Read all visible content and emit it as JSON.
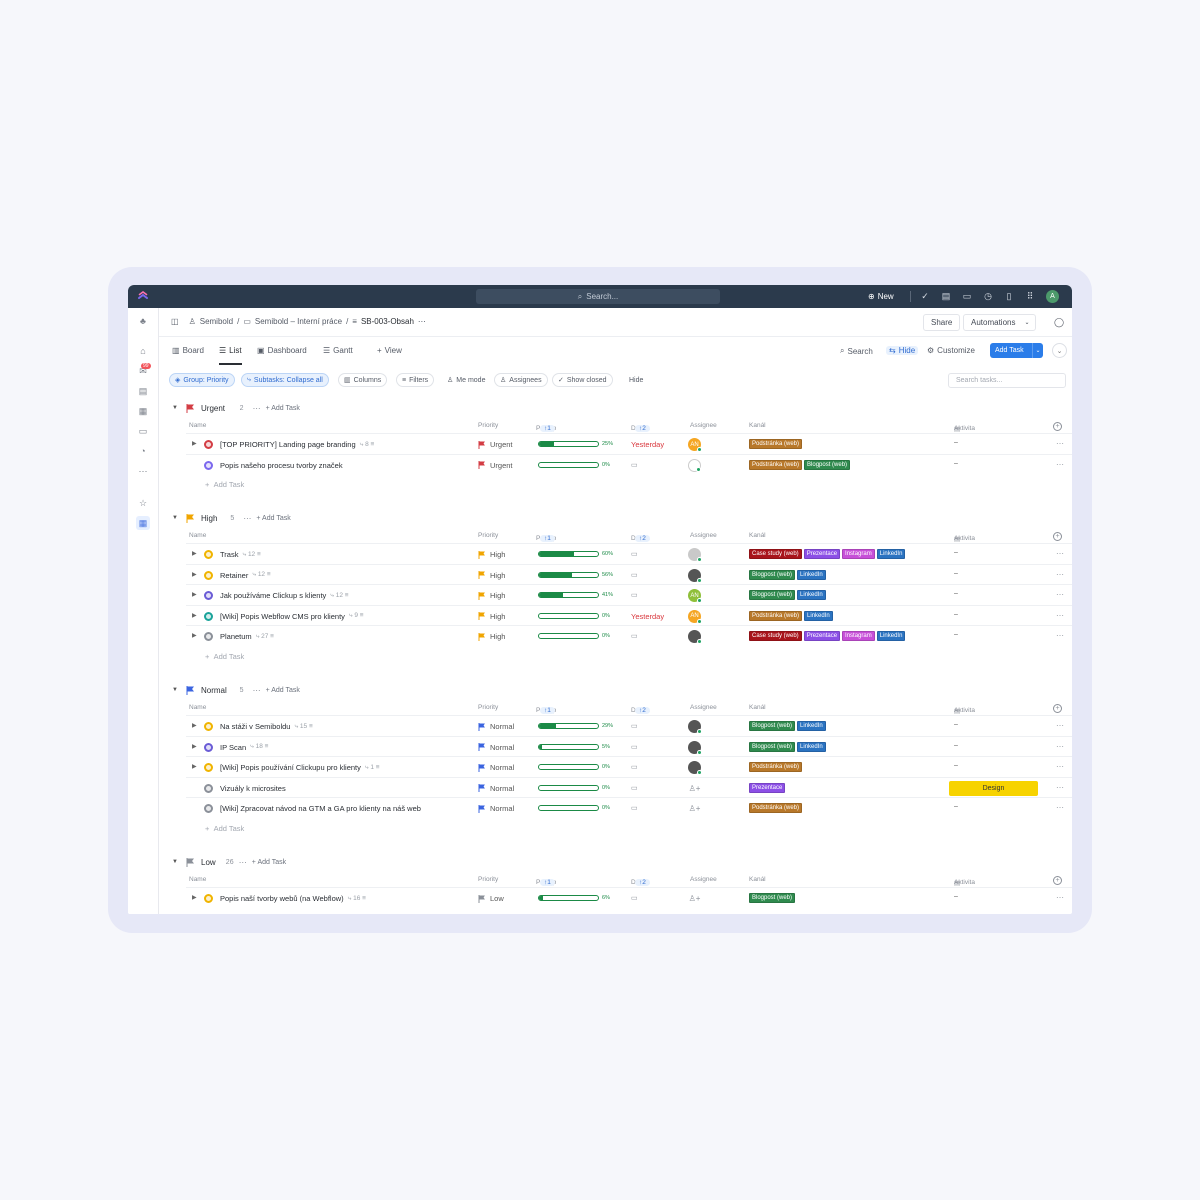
{
  "topbar": {
    "search_placeholder": "Search...",
    "new_label": "New",
    "avatar_initial": "A"
  },
  "rail": {
    "inbox_badge": "99"
  },
  "header": {
    "crumb1": "Semibold",
    "crumb2": "Semibold – Interní práce",
    "crumb3": "SB-003-Obsah",
    "share": "Share",
    "automations": "Automations"
  },
  "views": {
    "board": "Board",
    "list": "List",
    "dashboard": "Dashboard",
    "gantt": "Gantt",
    "add_view": "View",
    "search": "Search",
    "hide": "Hide",
    "customize": "Customize",
    "add_task": "Add Task"
  },
  "filters": {
    "group": "Group: Priority",
    "subtasks": "Subtasks: Collapse all",
    "columns": "Columns",
    "filters": "Filters",
    "me_mode": "Me mode",
    "assignees": "Assignees",
    "show_closed": "Show closed",
    "hide": "Hide",
    "search_placeholder": "Search tasks..."
  },
  "columns": {
    "name": "Name",
    "priority": "Priority",
    "postup": "Postup",
    "postup_sort": "↑1",
    "due": "Due ...",
    "due_sort": "↑2",
    "assignee": "Assignee",
    "kanal": "Kanál",
    "aktivita": "Aktivita"
  },
  "add_task_label": "Add Task",
  "colors": {
    "urgent": "#d33d44",
    "high": "#f0a500",
    "normal": "#3b64e0",
    "low": "#8b9099",
    "progress": "#1b8a46",
    "tag_podstranka": "#b8782a",
    "tag_blogpost": "#2f8a4e",
    "tag_linkedin": "#2b73c1",
    "tag_casestudy": "#a8141b",
    "tag_prezentace": "#8c4fe6",
    "tag_instagram": "#c74fd8",
    "design": "#f7d300"
  },
  "groups": [
    {
      "name": "Urgent",
      "count": "2",
      "add": "Add Task",
      "rows": [
        {
          "name": "[TOP PRIORITY] Landing page branding",
          "meta": "8",
          "priority": "Urgent",
          "progress": 25,
          "pct": "25%",
          "due": "Yesterday",
          "tags": [
            "Podstránka (web)"
          ],
          "aktivita": "–"
        },
        {
          "name": "Popis našeho procesu tvorby značek",
          "meta": "",
          "priority": "Urgent",
          "progress": 0,
          "pct": "0%",
          "due": "",
          "tags": [
            "Podstránka (web)",
            "Blogpost (web)"
          ],
          "aktivita": "–"
        }
      ]
    },
    {
      "name": "High",
      "count": "5",
      "add": "Add Task",
      "rows": [
        {
          "name": "Trask",
          "meta": "12",
          "priority": "High",
          "progress": 60,
          "pct": "60%",
          "due": "",
          "tags": [
            "Case study (web)",
            "Prezentace",
            "Instagram",
            "LinkedIn"
          ],
          "aktivita": "–"
        },
        {
          "name": "Retainer",
          "meta": "12",
          "priority": "High",
          "progress": 56,
          "pct": "56%",
          "due": "",
          "tags": [
            "Blogpost (web)",
            "LinkedIn"
          ],
          "aktivita": "–"
        },
        {
          "name": "Jak používáme Clickup s klienty",
          "meta": "12",
          "priority": "High",
          "progress": 41,
          "pct": "41%",
          "due": "",
          "tags": [
            "Blogpost (web)",
            "LinkedIn"
          ],
          "aktivita": "–"
        },
        {
          "name": "[Wiki] Popis Webflow CMS pro klienty",
          "meta": "9",
          "priority": "High",
          "progress": 0,
          "pct": "0%",
          "due": "Yesterday",
          "tags": [
            "Podstránka (web)",
            "LinkedIn"
          ],
          "aktivita": "–"
        },
        {
          "name": "Planetum",
          "meta": "27",
          "priority": "High",
          "progress": 0,
          "pct": "0%",
          "due": "",
          "tags": [
            "Case study (web)",
            "Prezentace",
            "Instagram",
            "LinkedIn"
          ],
          "aktivita": "–"
        }
      ]
    },
    {
      "name": "Normal",
      "count": "5",
      "add": "Add Task",
      "rows": [
        {
          "name": "Na stáži v Semiboldu",
          "meta": "15",
          "priority": "Normal",
          "progress": 29,
          "pct": "29%",
          "due": "",
          "tags": [
            "Blogpost (web)",
            "LinkedIn"
          ],
          "aktivita": "–"
        },
        {
          "name": "IP Scan",
          "meta": "18",
          "priority": "Normal",
          "progress": 5,
          "pct": "5%",
          "due": "",
          "tags": [
            "Blogpost (web)",
            "LinkedIn"
          ],
          "aktivita": "–"
        },
        {
          "name": "[Wiki] Popis používání Clickupu pro klienty",
          "meta": "1",
          "priority": "Normal",
          "progress": 0,
          "pct": "0%",
          "due": "",
          "tags": [
            "Podstránka (web)"
          ],
          "aktivita": "–"
        },
        {
          "name": "Vizuály k microsites",
          "meta": "",
          "priority": "Normal",
          "progress": 0,
          "pct": "0%",
          "due": "",
          "tags": [
            "Prezentace"
          ],
          "aktivita": "Design"
        },
        {
          "name": "[Wiki] Zpracovat návod na GTM a GA pro klienty na náš web",
          "meta": "",
          "priority": "Normal",
          "progress": 0,
          "pct": "0%",
          "due": "",
          "tags": [
            "Podstránka (web)"
          ],
          "aktivita": "–"
        }
      ]
    },
    {
      "name": "Low",
      "count": "26",
      "add": "Add Task",
      "rows": [
        {
          "name": "Popis naší tvorby webů (na Webflow)",
          "meta": "16",
          "priority": "Low",
          "progress": 6,
          "pct": "6%",
          "due": "",
          "tags": [
            "Blogpost (web)"
          ],
          "aktivita": "–"
        }
      ]
    }
  ]
}
